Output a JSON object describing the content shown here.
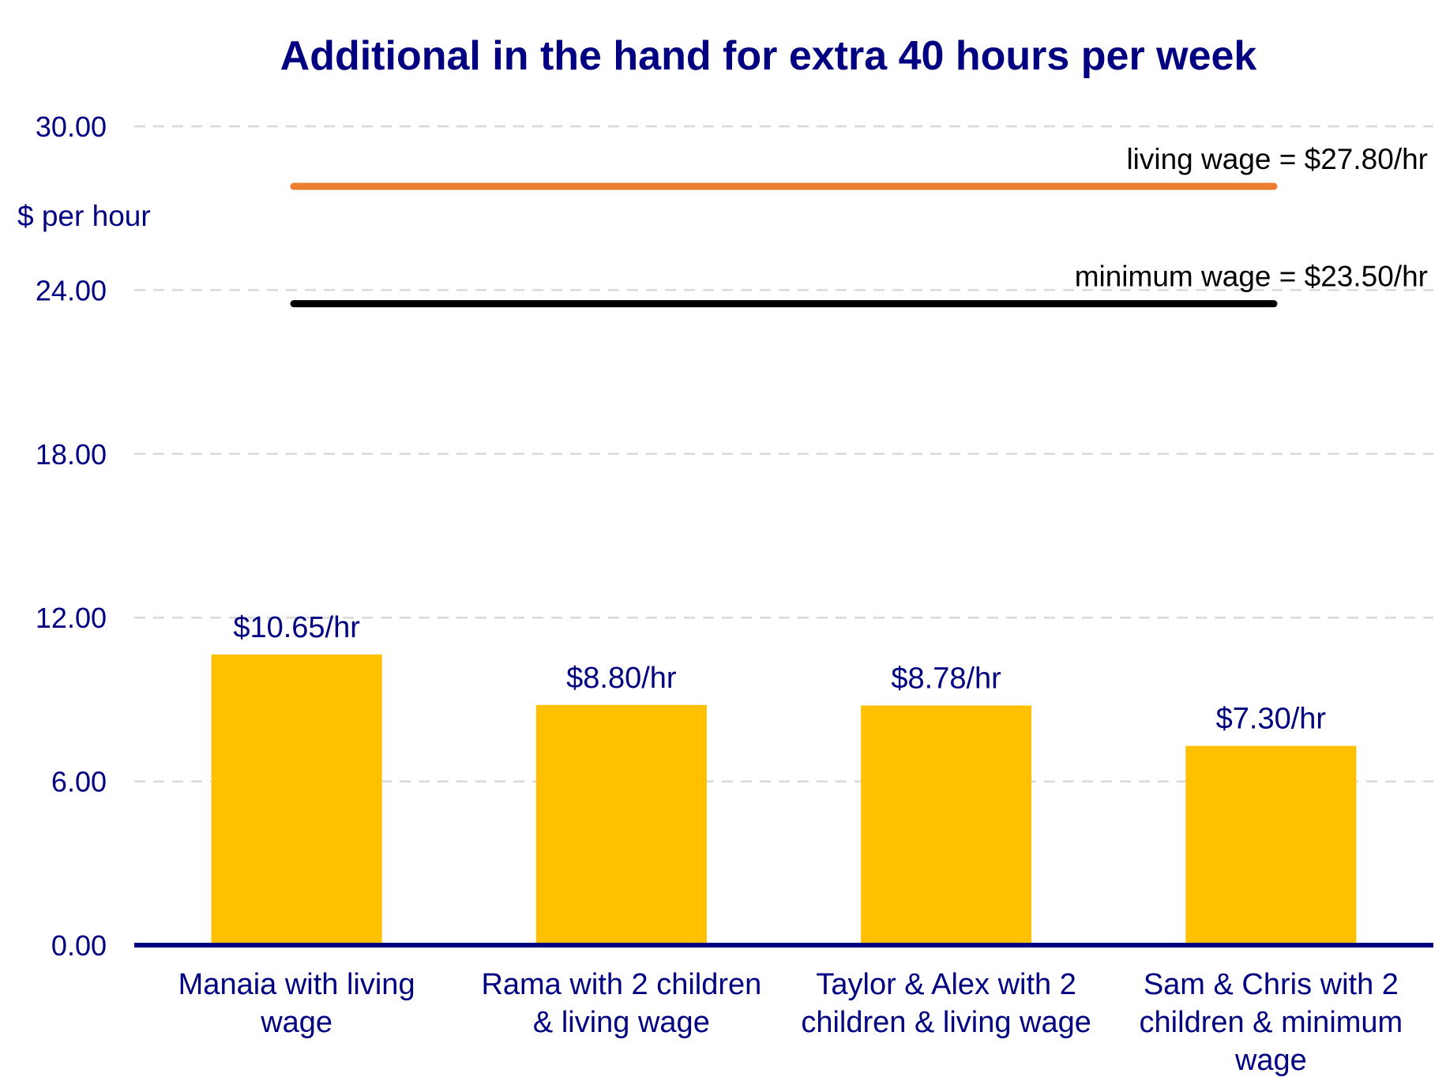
{
  "chart_data": {
    "type": "bar",
    "title": "Additional in the hand for extra 40 hours per week",
    "ylabel": "$ per hour",
    "xlabel": "",
    "ylim": [
      0,
      30
    ],
    "yticks": [
      0,
      6,
      12,
      18,
      24,
      30
    ],
    "ytick_labels": [
      "0.00",
      "6.00",
      "12.00",
      "18.00",
      "24.00",
      "30.00"
    ],
    "grid": true,
    "categories": [
      [
        "Manaia with living",
        "wage"
      ],
      [
        "Rama with 2 children",
        "& living wage"
      ],
      [
        "Taylor & Alex with 2",
        "children & living wage"
      ],
      [
        "Sam & Chris with 2",
        "children & minimum",
        "wage"
      ]
    ],
    "values": [
      10.65,
      8.8,
      8.78,
      7.3
    ],
    "data_labels": [
      "$10.65/hr",
      "$8.80/hr",
      "$8.78/hr",
      "$7.30/hr"
    ],
    "reference_lines": [
      {
        "name": "living wage",
        "value": 27.8,
        "label": "living wage = $27.80/hr",
        "color": "#ED7D31"
      },
      {
        "name": "minimum wage",
        "value": 23.5,
        "label": "minimum wage = $23.50/hr",
        "color": "#000000"
      }
    ],
    "colors": {
      "bar": "#FFC000",
      "axis": "#000080",
      "text": "#000080",
      "grid": "#D9D9D9"
    }
  }
}
